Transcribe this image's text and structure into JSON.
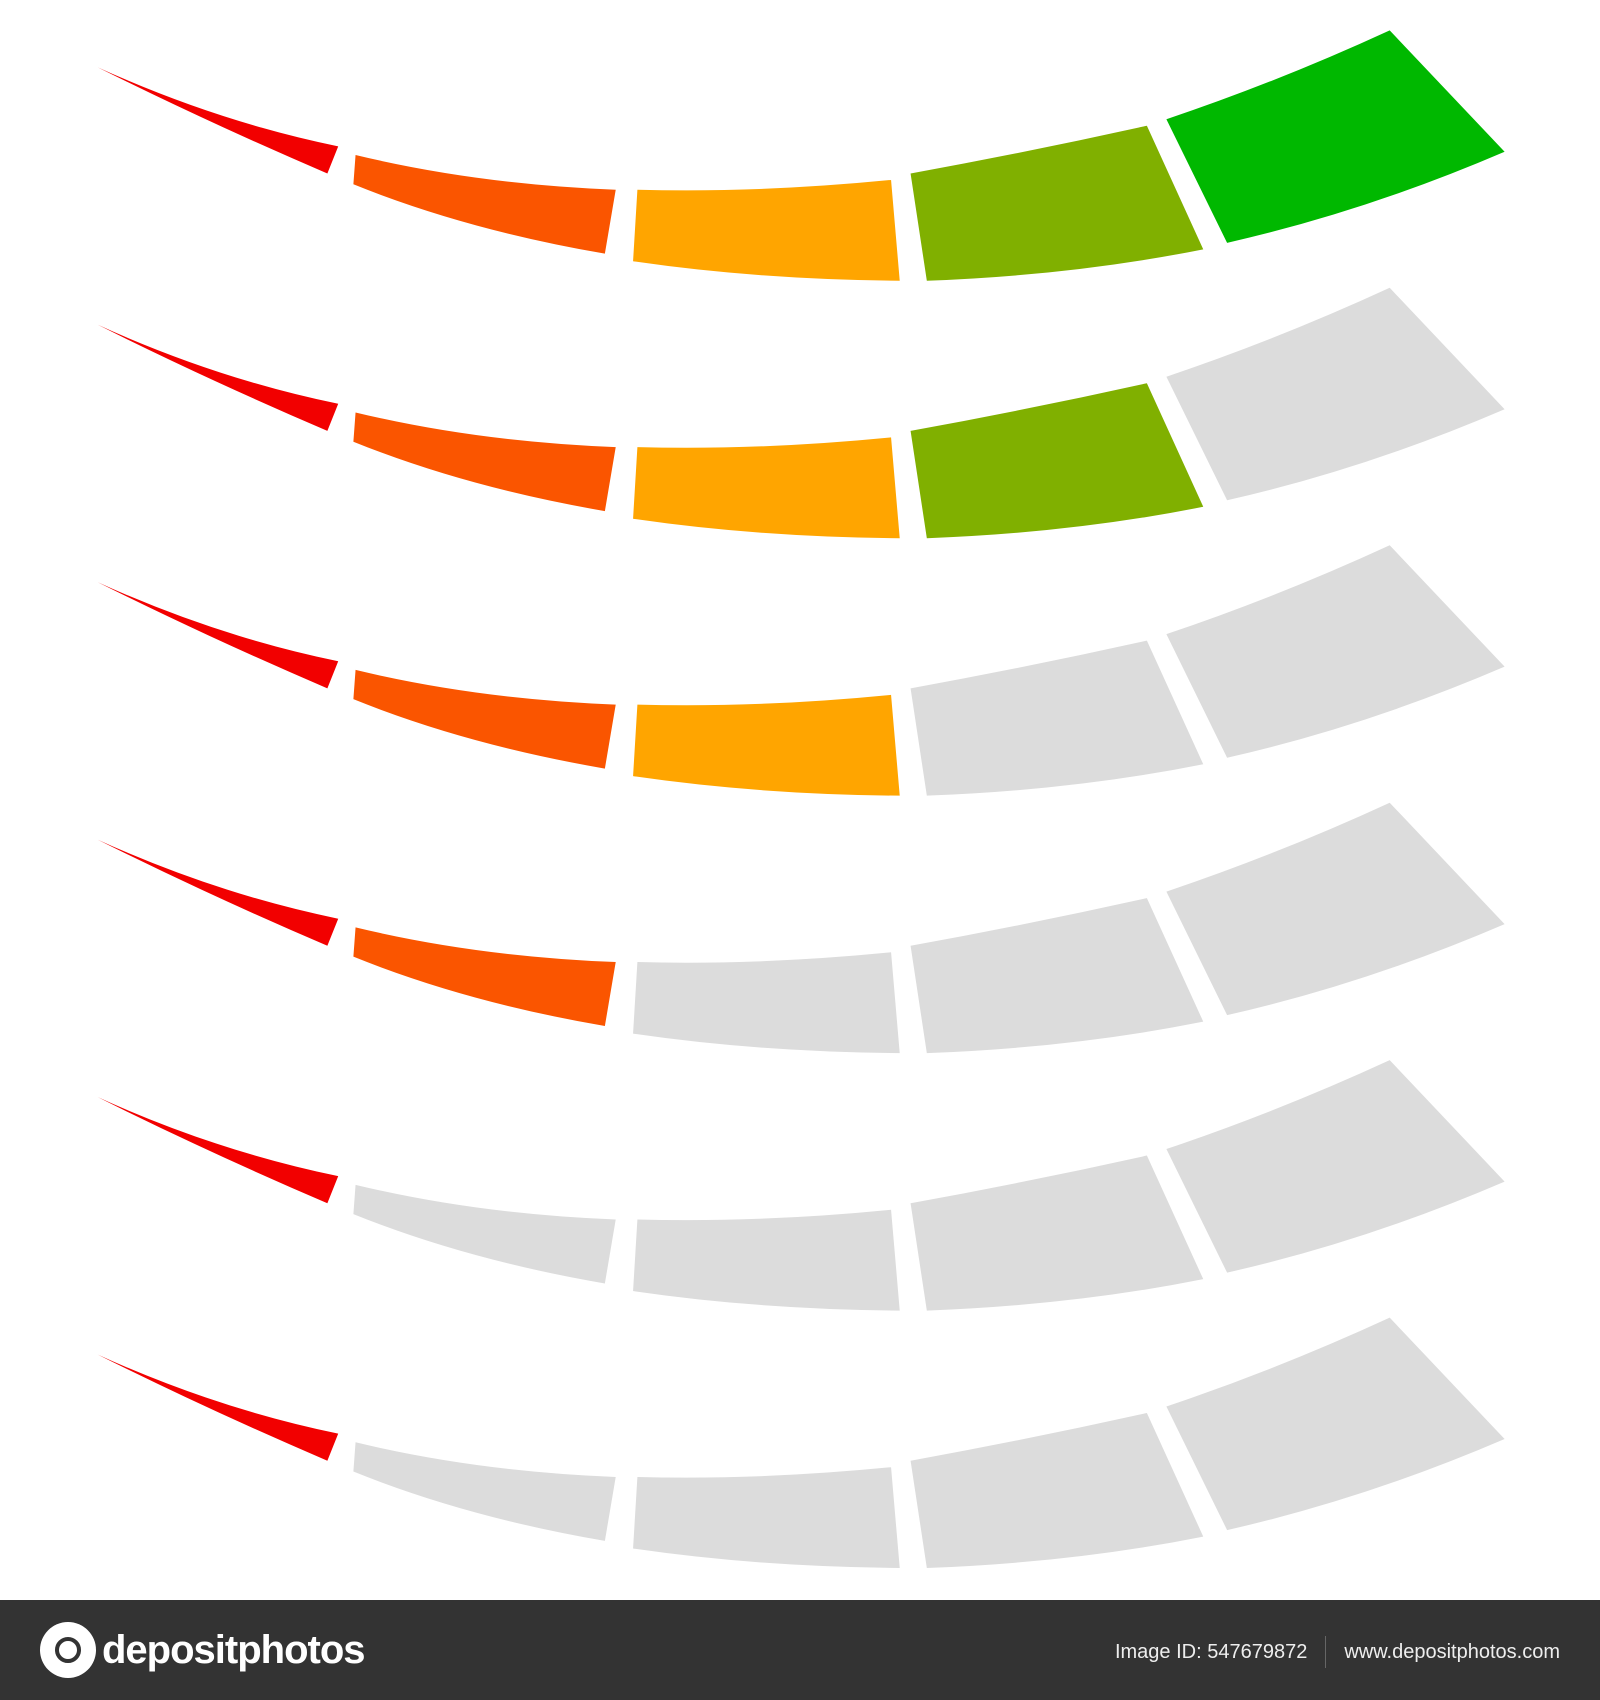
{
  "gauges": [
    {
      "level": 5,
      "segments": 5
    },
    {
      "level": 4,
      "segments": 5
    },
    {
      "level": 3,
      "segments": 5
    },
    {
      "level": 2,
      "segments": 5
    },
    {
      "level": 1,
      "segments": 5
    },
    {
      "level": 1,
      "segments": 5
    }
  ],
  "colors": {
    "segment_1": "#f20000",
    "segment_2": "#fa5500",
    "segment_3": "#ffa500",
    "segment_4": "#80b000",
    "segment_5": "#00b800",
    "inactive": "#dcdcdc",
    "footer_bg": "#333333"
  },
  "footer": {
    "logo_text": "depositphotos",
    "image_id": "Image ID: 547679872",
    "website": "www.depositphotos.com"
  }
}
